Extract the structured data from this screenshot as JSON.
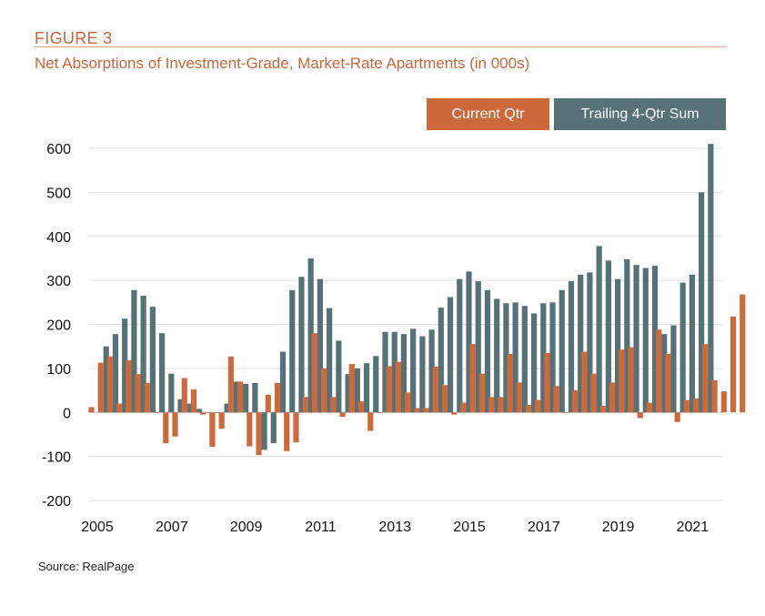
{
  "figure_label": "FIGURE 3",
  "source": "Source: RealPage",
  "chart_data": {
    "type": "bar",
    "title": "Net Absorptions of Investment-Grade, Market-Rate Apartments (in 000s)",
    "xlabel": "",
    "ylabel": "",
    "ylim": [
      -200,
      600
    ],
    "yticks": [
      -200,
      -100,
      0,
      100,
      200,
      300,
      400,
      500,
      600
    ],
    "xticks": [
      "2005",
      "2007",
      "2009",
      "2011",
      "2013",
      "2015",
      "2017",
      "2019",
      "2021"
    ],
    "x_start": 2005.0,
    "quarters_per_year": 4,
    "grid": true,
    "legend_position": "top-right",
    "colors": {
      "current": "#cd6a3c",
      "trailing": "#577277"
    },
    "series": [
      {
        "name": "Current Qtr",
        "values": [
          12,
          113,
          127,
          20,
          118,
          87,
          67,
          0,
          -70,
          -55,
          78,
          52,
          -5,
          -78,
          -37,
          127,
          70,
          -77,
          -97,
          40,
          67,
          -88,
          -68,
          35,
          180,
          100,
          35,
          -10,
          110,
          25,
          -42,
          0,
          105,
          115,
          45,
          10,
          10,
          104,
          62,
          -5,
          22,
          155,
          88,
          35,
          35,
          133,
          68,
          17,
          28,
          135,
          60,
          0,
          50,
          138,
          88,
          15,
          68,
          143,
          148,
          -13,
          22,
          188,
          133,
          -22,
          28,
          32,
          155,
          73,
          48,
          218,
          268
        ]
      },
      {
        "name": "Trailing 4-Qtr Sum",
        "values": [
          150,
          178,
          213,
          278,
          265,
          240,
          180,
          88,
          30,
          20,
          8,
          0,
          0,
          20,
          70,
          65,
          67,
          -85,
          -70,
          138,
          278,
          308,
          350,
          303,
          237,
          163,
          87,
          100,
          112,
          128,
          183,
          183,
          178,
          190,
          173,
          188,
          238,
          262,
          303,
          320,
          298,
          278,
          258,
          248,
          250,
          242,
          225,
          248,
          250,
          278,
          298,
          313,
          318,
          378,
          345,
          303,
          348,
          335,
          328,
          333,
          178,
          198,
          295,
          313,
          500,
          610
        ]
      }
    ]
  }
}
